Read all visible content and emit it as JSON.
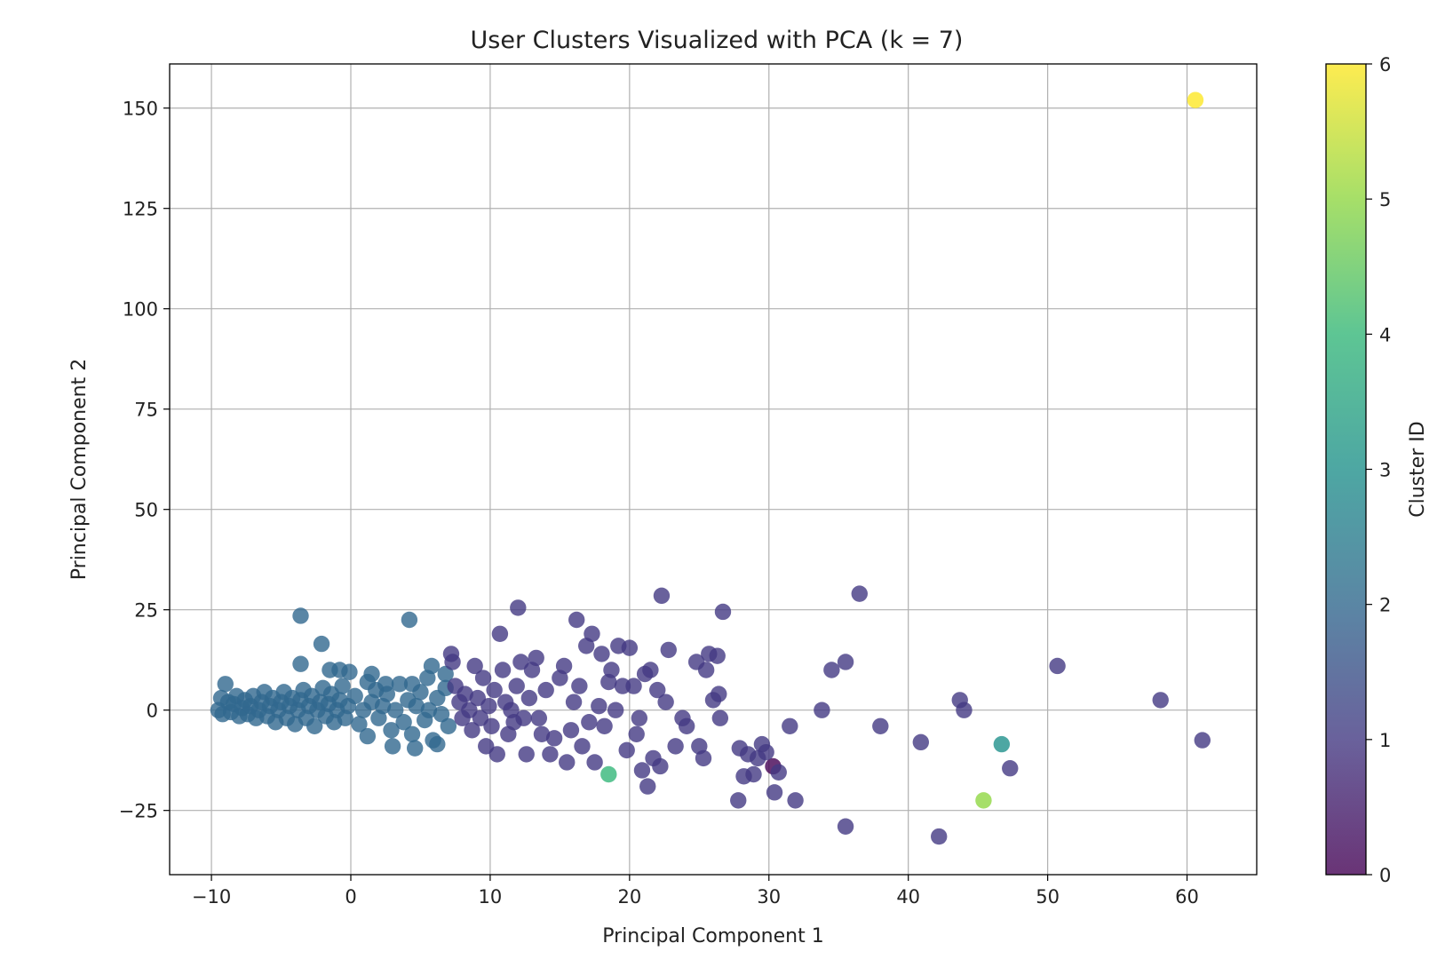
{
  "chart_data": {
    "type": "scatter",
    "title": "User Clusters Visualized with PCA (k = 7)",
    "xlabel": "Principal Component 1",
    "ylabel": "Principal Component 2",
    "xlim": [
      -13,
      65
    ],
    "ylim": [
      -41,
      161
    ],
    "xticks": [
      -10,
      0,
      10,
      20,
      30,
      40,
      50,
      60
    ],
    "xtick_labels": [
      "−10",
      "0",
      "10",
      "20",
      "30",
      "40",
      "50",
      "60"
    ],
    "yticks": [
      -25,
      0,
      25,
      50,
      75,
      100,
      125,
      150
    ],
    "ytick_labels": [
      "−25",
      "0",
      "25",
      "50",
      "75",
      "100",
      "125",
      "150"
    ],
    "grid": true,
    "colormap": "viridis",
    "marker_alpha": 0.8,
    "colorbar": {
      "label": "Cluster ID",
      "min": 0,
      "max": 6,
      "ticks": [
        0,
        1,
        2,
        3,
        4,
        5,
        6
      ],
      "tick_labels": [
        "0",
        "1",
        "2",
        "3",
        "4",
        "5",
        "6"
      ],
      "stops": [
        "#440154",
        "#443a83",
        "#31688e",
        "#21918c",
        "#35b779",
        "#90d743",
        "#fde725"
      ]
    },
    "points": [
      {
        "x": 60.6,
        "y": 152,
        "c": 6
      },
      {
        "x": 45.4,
        "y": -22.5,
        "c": 5
      },
      {
        "x": 18.5,
        "y": -16,
        "c": 4
      },
      {
        "x": 46.7,
        "y": -8.5,
        "c": 3
      },
      {
        "x": 30.3,
        "y": -14,
        "c": 0
      },
      {
        "x": -3.6,
        "y": 23.5,
        "c": 2
      },
      {
        "x": 4.2,
        "y": 22.5,
        "c": 2
      },
      {
        "x": -2.1,
        "y": 16.5,
        "c": 2
      },
      {
        "x": -3.6,
        "y": 11.5,
        "c": 2
      },
      {
        "x": -1.5,
        "y": 10,
        "c": 2
      },
      {
        "x": -0.8,
        "y": 10,
        "c": 2
      },
      {
        "x": -0.1,
        "y": 9.5,
        "c": 2
      },
      {
        "x": 1.5,
        "y": 9,
        "c": 2
      },
      {
        "x": 5.8,
        "y": 11,
        "c": 2
      },
      {
        "x": 5.5,
        "y": 8,
        "c": 2
      },
      {
        "x": 6.8,
        "y": 9,
        "c": 2
      },
      {
        "x": -9.0,
        "y": 6.5,
        "c": 2
      },
      {
        "x": -9.3,
        "y": 3,
        "c": 2
      },
      {
        "x": -9.5,
        "y": 0,
        "c": 2
      },
      {
        "x": -9.2,
        "y": -1,
        "c": 2
      },
      {
        "x": -8.8,
        "y": 2,
        "c": 2
      },
      {
        "x": -8.6,
        "y": -0.5,
        "c": 2
      },
      {
        "x": -8.4,
        "y": 1.5,
        "c": 2
      },
      {
        "x": -8.2,
        "y": 3.5,
        "c": 2
      },
      {
        "x": -8.0,
        "y": -1.5,
        "c": 2
      },
      {
        "x": -7.8,
        "y": 0.5,
        "c": 2
      },
      {
        "x": -7.6,
        "y": 2.5,
        "c": 2
      },
      {
        "x": -7.4,
        "y": -1,
        "c": 2
      },
      {
        "x": -7.2,
        "y": 1,
        "c": 2
      },
      {
        "x": -7.0,
        "y": 3.5,
        "c": 2
      },
      {
        "x": -6.8,
        "y": -2,
        "c": 2
      },
      {
        "x": -6.6,
        "y": 0,
        "c": 2
      },
      {
        "x": -6.4,
        "y": 2,
        "c": 2
      },
      {
        "x": -6.2,
        "y": 4.5,
        "c": 2
      },
      {
        "x": -6.0,
        "y": -1.5,
        "c": 2
      },
      {
        "x": -5.8,
        "y": 1,
        "c": 2
      },
      {
        "x": -5.6,
        "y": 3,
        "c": 2
      },
      {
        "x": -5.4,
        "y": -3,
        "c": 2
      },
      {
        "x": -5.2,
        "y": 0,
        "c": 2
      },
      {
        "x": -5.0,
        "y": 2,
        "c": 2
      },
      {
        "x": -4.8,
        "y": 4.5,
        "c": 2
      },
      {
        "x": -4.6,
        "y": -2,
        "c": 2
      },
      {
        "x": -4.4,
        "y": 1,
        "c": 2
      },
      {
        "x": -4.2,
        "y": 3,
        "c": 2
      },
      {
        "x": -4.0,
        "y": -3.5,
        "c": 2
      },
      {
        "x": -3.8,
        "y": 0,
        "c": 2
      },
      {
        "x": -3.6,
        "y": 2.5,
        "c": 2
      },
      {
        "x": -3.4,
        "y": 5,
        "c": 2
      },
      {
        "x": -3.2,
        "y": -2,
        "c": 2
      },
      {
        "x": -3.0,
        "y": 1,
        "c": 2
      },
      {
        "x": -2.8,
        "y": 3.5,
        "c": 2
      },
      {
        "x": -2.6,
        "y": -4,
        "c": 2
      },
      {
        "x": -2.4,
        "y": 0,
        "c": 2
      },
      {
        "x": -2.2,
        "y": 2,
        "c": 2
      },
      {
        "x": -2.0,
        "y": 5.5,
        "c": 2
      },
      {
        "x": -1.8,
        "y": -1.5,
        "c": 2
      },
      {
        "x": -1.6,
        "y": 1.5,
        "c": 2
      },
      {
        "x": -1.4,
        "y": 4,
        "c": 2
      },
      {
        "x": -1.2,
        "y": -3,
        "c": 2
      },
      {
        "x": -1.0,
        "y": 0,
        "c": 2
      },
      {
        "x": -0.8,
        "y": 2.5,
        "c": 2
      },
      {
        "x": -0.6,
        "y": 6,
        "c": 2
      },
      {
        "x": -0.4,
        "y": -2,
        "c": 2
      },
      {
        "x": -0.2,
        "y": 1,
        "c": 2
      },
      {
        "x": 0.3,
        "y": 3.5,
        "c": 2
      },
      {
        "x": 0.6,
        "y": -3.5,
        "c": 2
      },
      {
        "x": 0.9,
        "y": 0,
        "c": 2
      },
      {
        "x": 1.2,
        "y": -6.5,
        "c": 2
      },
      {
        "x": 1.5,
        "y": 2,
        "c": 2
      },
      {
        "x": 1.8,
        "y": 5,
        "c": 2
      },
      {
        "x": 2.0,
        "y": -2,
        "c": 2
      },
      {
        "x": 2.3,
        "y": 1,
        "c": 2
      },
      {
        "x": 2.6,
        "y": 4,
        "c": 2
      },
      {
        "x": 2.9,
        "y": -5,
        "c": 2
      },
      {
        "x": 3.2,
        "y": 0,
        "c": 2
      },
      {
        "x": 3.5,
        "y": 6.5,
        "c": 2
      },
      {
        "x": 3.8,
        "y": -3,
        "c": 2
      },
      {
        "x": 4.1,
        "y": 2.5,
        "c": 2
      },
      {
        "x": 4.4,
        "y": -6,
        "c": 2
      },
      {
        "x": 4.7,
        "y": 1,
        "c": 2
      },
      {
        "x": 5.0,
        "y": 4.5,
        "c": 2
      },
      {
        "x": 5.3,
        "y": -2.5,
        "c": 2
      },
      {
        "x": 5.6,
        "y": 0,
        "c": 2
      },
      {
        "x": 5.9,
        "y": -7.5,
        "c": 2
      },
      {
        "x": 6.2,
        "y": 3,
        "c": 2
      },
      {
        "x": 6.5,
        "y": -1,
        "c": 2
      },
      {
        "x": 6.8,
        "y": 5.5,
        "c": 2
      },
      {
        "x": 7.0,
        "y": -4,
        "c": 2
      },
      {
        "x": 3.0,
        "y": -9,
        "c": 2
      },
      {
        "x": 4.6,
        "y": -9.5,
        "c": 2
      },
      {
        "x": 6.2,
        "y": -8.5,
        "c": 2
      },
      {
        "x": 1.2,
        "y": 7,
        "c": 2
      },
      {
        "x": 2.5,
        "y": 6.5,
        "c": 2
      },
      {
        "x": 4.4,
        "y": 6.5,
        "c": 2
      },
      {
        "x": 7.2,
        "y": 14,
        "c": 1
      },
      {
        "x": 7.3,
        "y": 12,
        "c": 1
      },
      {
        "x": 7.5,
        "y": 6,
        "c": 1
      },
      {
        "x": 7.8,
        "y": 2,
        "c": 1
      },
      {
        "x": 8.0,
        "y": -2,
        "c": 1
      },
      {
        "x": 8.2,
        "y": 4,
        "c": 1
      },
      {
        "x": 8.5,
        "y": 0,
        "c": 1
      },
      {
        "x": 8.7,
        "y": -5,
        "c": 1
      },
      {
        "x": 8.9,
        "y": 11,
        "c": 1
      },
      {
        "x": 9.1,
        "y": 3,
        "c": 1
      },
      {
        "x": 9.3,
        "y": -2,
        "c": 1
      },
      {
        "x": 9.5,
        "y": 8,
        "c": 1
      },
      {
        "x": 9.7,
        "y": -9,
        "c": 1
      },
      {
        "x": 9.9,
        "y": 1,
        "c": 1
      },
      {
        "x": 10.1,
        "y": -4,
        "c": 1
      },
      {
        "x": 10.3,
        "y": 5,
        "c": 1
      },
      {
        "x": 10.5,
        "y": -11,
        "c": 1
      },
      {
        "x": 10.7,
        "y": 19,
        "c": 1
      },
      {
        "x": 10.9,
        "y": 10,
        "c": 1
      },
      {
        "x": 11.1,
        "y": 2,
        "c": 1
      },
      {
        "x": 11.3,
        "y": -6,
        "c": 1
      },
      {
        "x": 11.5,
        "y": 0,
        "c": 1
      },
      {
        "x": 11.7,
        "y": -3,
        "c": 1
      },
      {
        "x": 11.9,
        "y": 6,
        "c": 1
      },
      {
        "x": 12.0,
        "y": 25.5,
        "c": 1
      },
      {
        "x": 12.2,
        "y": 12,
        "c": 1
      },
      {
        "x": 12.4,
        "y": -2,
        "c": 1
      },
      {
        "x": 12.6,
        "y": -11,
        "c": 1
      },
      {
        "x": 12.8,
        "y": 3,
        "c": 1
      },
      {
        "x": 13.0,
        "y": 10,
        "c": 1
      },
      {
        "x": 13.3,
        "y": 13,
        "c": 1
      },
      {
        "x": 13.5,
        "y": -2,
        "c": 1
      },
      {
        "x": 13.7,
        "y": -6,
        "c": 1
      },
      {
        "x": 14.0,
        "y": 5,
        "c": 1
      },
      {
        "x": 14.3,
        "y": -11,
        "c": 1
      },
      {
        "x": 14.6,
        "y": -7,
        "c": 1
      },
      {
        "x": 15.0,
        "y": 8,
        "c": 1
      },
      {
        "x": 15.3,
        "y": 11,
        "c": 1
      },
      {
        "x": 15.5,
        "y": -13,
        "c": 1
      },
      {
        "x": 15.8,
        "y": -5,
        "c": 1
      },
      {
        "x": 16.0,
        "y": 2,
        "c": 1
      },
      {
        "x": 16.2,
        "y": 22.5,
        "c": 1
      },
      {
        "x": 16.4,
        "y": 6,
        "c": 1
      },
      {
        "x": 16.6,
        "y": -9,
        "c": 1
      },
      {
        "x": 16.9,
        "y": 16,
        "c": 1
      },
      {
        "x": 17.1,
        "y": -3,
        "c": 1
      },
      {
        "x": 17.3,
        "y": 19,
        "c": 1
      },
      {
        "x": 17.5,
        "y": -13,
        "c": 1
      },
      {
        "x": 17.8,
        "y": 1,
        "c": 1
      },
      {
        "x": 18.0,
        "y": 14,
        "c": 1
      },
      {
        "x": 18.2,
        "y": -4,
        "c": 1
      },
      {
        "x": 18.5,
        "y": 7,
        "c": 1
      },
      {
        "x": 18.7,
        "y": 10,
        "c": 1
      },
      {
        "x": 19.0,
        "y": 0,
        "c": 1
      },
      {
        "x": 19.2,
        "y": 16,
        "c": 1
      },
      {
        "x": 19.5,
        "y": 6,
        "c": 1
      },
      {
        "x": 19.8,
        "y": -10,
        "c": 1
      },
      {
        "x": 20.0,
        "y": 15.5,
        "c": 1
      },
      {
        "x": 20.3,
        "y": 6,
        "c": 1
      },
      {
        "x": 20.5,
        "y": -6,
        "c": 1
      },
      {
        "x": 20.7,
        "y": -2,
        "c": 1
      },
      {
        "x": 20.9,
        "y": -15,
        "c": 1
      },
      {
        "x": 21.1,
        "y": 9,
        "c": 1
      },
      {
        "x": 21.3,
        "y": -19,
        "c": 1
      },
      {
        "x": 21.5,
        "y": 10,
        "c": 1
      },
      {
        "x": 21.7,
        "y": -12,
        "c": 1
      },
      {
        "x": 22.0,
        "y": 5,
        "c": 1
      },
      {
        "x": 22.2,
        "y": -14,
        "c": 1
      },
      {
        "x": 22.3,
        "y": 28.5,
        "c": 1
      },
      {
        "x": 22.6,
        "y": 2,
        "c": 1
      },
      {
        "x": 22.8,
        "y": 15,
        "c": 1
      },
      {
        "x": 23.3,
        "y": -9,
        "c": 1
      },
      {
        "x": 23.8,
        "y": -2,
        "c": 1
      },
      {
        "x": 24.1,
        "y": -4,
        "c": 1
      },
      {
        "x": 24.8,
        "y": 12,
        "c": 1
      },
      {
        "x": 25.0,
        "y": -9,
        "c": 1
      },
      {
        "x": 25.3,
        "y": -12,
        "c": 1
      },
      {
        "x": 25.5,
        "y": 10,
        "c": 1
      },
      {
        "x": 25.7,
        "y": 14,
        "c": 1
      },
      {
        "x": 26.0,
        "y": 2.5,
        "c": 1
      },
      {
        "x": 26.3,
        "y": 13.5,
        "c": 1
      },
      {
        "x": 26.4,
        "y": 4,
        "c": 1
      },
      {
        "x": 26.5,
        "y": -2,
        "c": 1
      },
      {
        "x": 26.7,
        "y": 24.5,
        "c": 1
      },
      {
        "x": 27.9,
        "y": -9.5,
        "c": 1
      },
      {
        "x": 27.8,
        "y": -22.5,
        "c": 1
      },
      {
        "x": 28.2,
        "y": -16.5,
        "c": 1
      },
      {
        "x": 28.5,
        "y": -11,
        "c": 1
      },
      {
        "x": 28.9,
        "y": -16,
        "c": 1
      },
      {
        "x": 29.2,
        "y": -12,
        "c": 1
      },
      {
        "x": 29.5,
        "y": -8.5,
        "c": 1
      },
      {
        "x": 29.8,
        "y": -10.5,
        "c": 1
      },
      {
        "x": 30.4,
        "y": -20.5,
        "c": 1
      },
      {
        "x": 30.7,
        "y": -15.5,
        "c": 1
      },
      {
        "x": 31.5,
        "y": -4,
        "c": 1
      },
      {
        "x": 31.9,
        "y": -22.5,
        "c": 1
      },
      {
        "x": 33.8,
        "y": 0,
        "c": 1
      },
      {
        "x": 34.5,
        "y": 10,
        "c": 1
      },
      {
        "x": 35.5,
        "y": 12,
        "c": 1
      },
      {
        "x": 35.5,
        "y": -29,
        "c": 1
      },
      {
        "x": 36.5,
        "y": 29,
        "c": 1
      },
      {
        "x": 38.0,
        "y": -4,
        "c": 1
      },
      {
        "x": 40.9,
        "y": -8,
        "c": 1
      },
      {
        "x": 42.2,
        "y": -31.5,
        "c": 1
      },
      {
        "x": 43.7,
        "y": 2.5,
        "c": 1
      },
      {
        "x": 44.0,
        "y": 0,
        "c": 1
      },
      {
        "x": 47.3,
        "y": -14.5,
        "c": 1
      },
      {
        "x": 50.7,
        "y": 11,
        "c": 1
      },
      {
        "x": 58.1,
        "y": 2.5,
        "c": 1
      },
      {
        "x": 61.1,
        "y": -7.5,
        "c": 1
      }
    ]
  }
}
